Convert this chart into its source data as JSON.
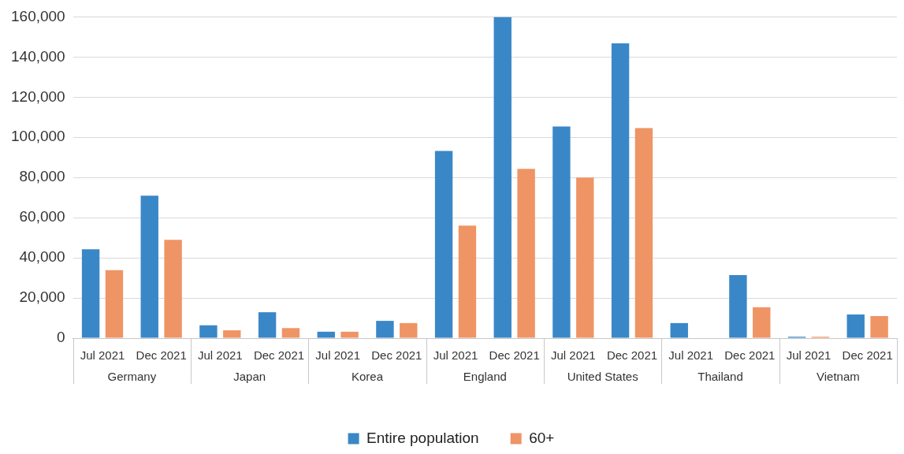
{
  "chart_data": {
    "type": "bar",
    "categories": [
      "Jul 2021",
      "Dec 2021",
      "Jul 2021",
      "Dec 2021",
      "Jul 2021",
      "Dec 2021",
      "Jul 2021",
      "Dec 2021",
      "Jul 2021",
      "Dec 2021",
      "Jul 2021",
      "Dec 2021",
      "Jul 2021",
      "Dec 2021"
    ],
    "series": [
      {
        "name": "Entire population",
        "color": "#3a87c8",
        "values": [
          44300,
          71000,
          6400,
          12900,
          3200,
          8600,
          93200,
          160000,
          105400,
          146800,
          7500,
          31400,
          700,
          11800
        ]
      },
      {
        "name": "60+",
        "color": "#ef9465",
        "values": [
          33900,
          49000,
          3900,
          5000,
          3200,
          7500,
          56000,
          84300,
          80000,
          104600,
          null,
          15400,
          700,
          11000
        ]
      }
    ],
    "annotations": [
      "Germany",
      "Japan",
      "Korea",
      "England",
      "United States",
      "Thailand",
      "Vietnam"
    ],
    "ylim": [
      0,
      160000
    ],
    "yticks": [
      {
        "value": 0,
        "label": "0"
      },
      {
        "value": 20000,
        "label": "20,000"
      },
      {
        "value": 40000,
        "label": "40,000"
      },
      {
        "value": 60000,
        "label": "60,000"
      },
      {
        "value": 80000,
        "label": "80,000"
      },
      {
        "value": 100000,
        "label": "100,000"
      },
      {
        "value": 120000,
        "label": "120,000"
      },
      {
        "value": 140000,
        "label": "140,000"
      },
      {
        "value": 160000,
        "label": "160,000"
      }
    ],
    "grid": "y",
    "legend": "bottom"
  }
}
